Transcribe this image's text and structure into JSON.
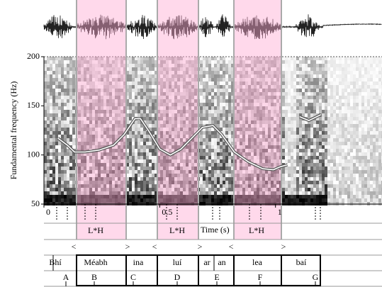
{
  "chart_data": {
    "type": "line",
    "ylabel": "Fundamental frequency (Hz)",
    "xlabel": "Time (s)",
    "xlim": [
      0,
      1.46
    ],
    "ylim": [
      50,
      200
    ],
    "xticks": [
      0,
      0.5,
      1
    ],
    "yticks": [
      50,
      100,
      150,
      200
    ],
    "x": [
      0.061,
      0.101,
      0.132,
      0.178,
      0.239,
      0.301,
      0.347,
      0.393,
      0.417,
      0.454,
      0.5,
      0.546,
      0.592,
      0.638,
      0.684,
      0.73,
      0.767,
      0.822,
      0.883,
      0.945,
      0.991,
      1.021,
      1.052,
      1.075,
      1.104,
      1.144,
      1.196
    ],
    "series": [
      {
        "color": "#ffffff",
        "values": [
          117,
          110,
          103,
          103,
          105,
          110,
          121,
          137,
          137,
          124,
          106,
          100,
          106,
          117,
          128,
          130,
          121,
          103,
          93,
          86,
          85,
          88,
          90,
          null,
          139,
          135,
          141
        ]
      }
    ],
    "tones": [
      "L*H",
      "L*H",
      "L*H"
    ],
    "phrase_marks": [
      "<",
      ">",
      "<",
      ">",
      "<",
      ">"
    ],
    "words": [
      "Bhí",
      "Méabh",
      "ina",
      "luí",
      "ar",
      "an",
      "lea",
      "baí"
    ],
    "syllables": [
      "A",
      "B",
      "C",
      "D",
      "E",
      "F",
      "G"
    ]
  }
}
